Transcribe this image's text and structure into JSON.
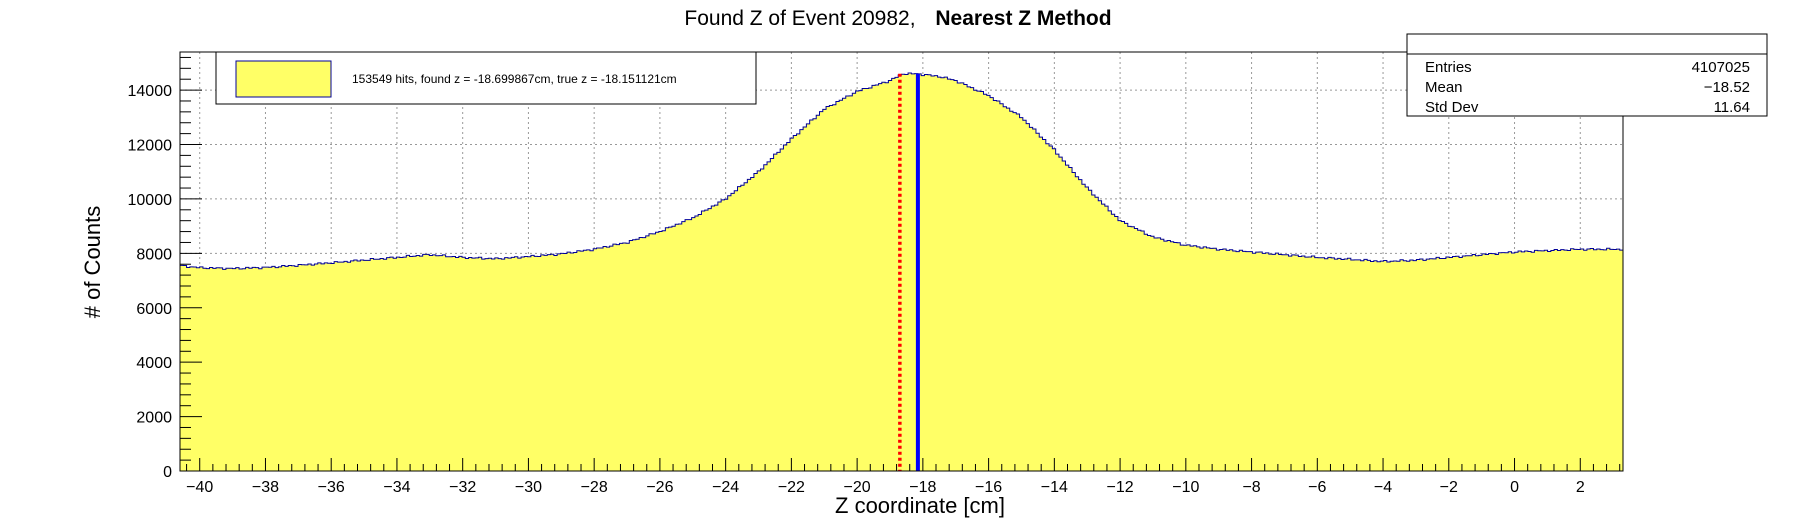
{
  "chart_data": {
    "type": "histogram",
    "title": "Found Z of Event 20982,",
    "title_method": "Nearest Z Method",
    "xlabel": "Z coordinate [cm]",
    "ylabel": "# of Counts",
    "xlim": [
      -40.6,
      3.3
    ],
    "ylim": [
      0,
      15400
    ],
    "xticks": [
      -40,
      -38,
      -36,
      -34,
      -32,
      -30,
      -28,
      -26,
      -24,
      -22,
      -20,
      -18,
      -16,
      -14,
      -12,
      -10,
      -8,
      -6,
      -4,
      -2,
      0,
      2
    ],
    "yticks": [
      0,
      2000,
      4000,
      6000,
      8000,
      10000,
      12000,
      14000
    ],
    "grid": true,
    "fill_color": "#ffff66",
    "line_color": "#000099",
    "profile": {
      "x": [
        -40.6,
        -40.0,
        -39.0,
        -38.0,
        -37.0,
        -36.0,
        -35.0,
        -34.0,
        -33.0,
        -32.0,
        -31.0,
        -30.0,
        -29.0,
        -28.0,
        -27.0,
        -26.0,
        -25.0,
        -24.0,
        -23.0,
        -22.0,
        -21.0,
        -20.0,
        -19.0,
        -18.6,
        -18.2,
        -17.5,
        -17.0,
        -16.0,
        -15.0,
        -14.0,
        -13.0,
        -12.0,
        -11.0,
        -10.0,
        -9.0,
        -8.0,
        -7.0,
        -6.0,
        -5.0,
        -4.0,
        -3.0,
        -2.0,
        -1.0,
        0.0,
        1.0,
        2.0,
        3.3
      ],
      "y": [
        7550,
        7470,
        7440,
        7480,
        7560,
        7650,
        7750,
        7850,
        7950,
        7850,
        7800,
        7880,
        7980,
        8150,
        8400,
        8800,
        9300,
        10000,
        11000,
        12200,
        13300,
        13950,
        14350,
        14600,
        14600,
        14500,
        14350,
        13800,
        13000,
        11800,
        10400,
        9200,
        8600,
        8300,
        8150,
        8050,
        7950,
        7850,
        7780,
        7700,
        7750,
        7850,
        7950,
        8050,
        8100,
        8150,
        8150
      ]
    },
    "lines": [
      {
        "name": "found z",
        "x": -18.699867,
        "color": "#ff0000",
        "style": "dotted"
      },
      {
        "name": "true z",
        "x": -18.151121,
        "color": "#0000ff",
        "style": "solid"
      }
    ],
    "legend": {
      "position": "top-left",
      "entries": [
        "153549 hits, found z = -18.699867cm, true z = -18.151121cm"
      ]
    },
    "stats": {
      "position": "top-right",
      "rows": [
        {
          "label": "Entries",
          "value": "4107025"
        },
        {
          "label": "Mean",
          "value": "−18.52"
        },
        {
          "label": "Std Dev",
          "value": "11.64"
        }
      ]
    }
  }
}
